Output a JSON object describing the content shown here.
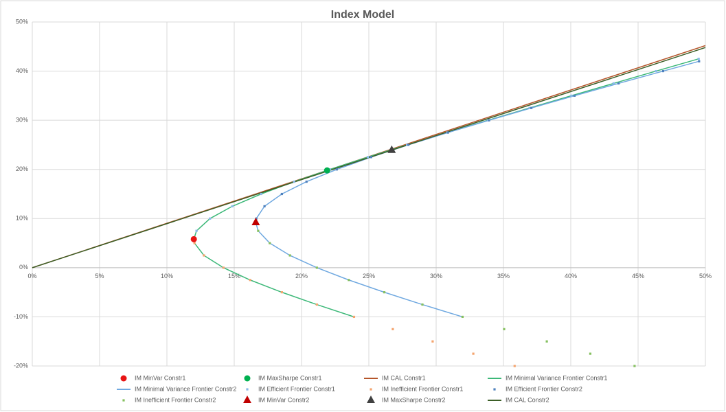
{
  "chart_data": {
    "type": "scatter",
    "title": "Index Model",
    "xlim": [
      0,
      50
    ],
    "ylim": [
      -20,
      50
    ],
    "xticks": [
      {
        "value": 0,
        "label": "0%"
      },
      {
        "value": 5,
        "label": "5%"
      },
      {
        "value": 10,
        "label": "10%"
      },
      {
        "value": 15,
        "label": "15%"
      },
      {
        "value": 20,
        "label": "20%"
      },
      {
        "value": 25,
        "label": "25%"
      },
      {
        "value": 30,
        "label": "30%"
      },
      {
        "value": 35,
        "label": "35%"
      },
      {
        "value": 40,
        "label": "40%"
      },
      {
        "value": 45,
        "label": "45%"
      },
      {
        "value": 50,
        "label": "50%"
      }
    ],
    "yticks": [
      {
        "value": -20,
        "label": "-20%"
      },
      {
        "value": -10,
        "label": "-10%"
      },
      {
        "value": 0,
        "label": "0%"
      },
      {
        "value": 10,
        "label": "10%"
      },
      {
        "value": 20,
        "label": "20%"
      },
      {
        "value": 30,
        "label": "30%"
      },
      {
        "value": 40,
        "label": "40%"
      },
      {
        "value": 50,
        "label": "50%"
      }
    ],
    "grid": true,
    "series": [
      {
        "name": "IM MinVar Constr1",
        "color": "#e81414",
        "marker": "circle",
        "x": [
          12.0
        ],
        "values": [
          5.8
        ]
      },
      {
        "name": "IM MaxSharpe Constr1",
        "color": "#00b050",
        "marker": "circle",
        "x": [
          21.9
        ],
        "values": [
          19.8
        ]
      },
      {
        "name": "IM CAL Constr1",
        "color": "#b5562b",
        "marker": "line",
        "x": [
          0,
          50
        ],
        "values": [
          0,
          45.2
        ]
      },
      {
        "name": "IM Minimal Variance Frontier Constr1",
        "color": "#3cb878",
        "marker": "line",
        "x": [
          23.9,
          21.14,
          18.54,
          16.18,
          14.2,
          12.75,
          12.05,
          12.0,
          12.2,
          13.2,
          14.86,
          17.0,
          19.45,
          22.12,
          24.93,
          27.84,
          30.83,
          33.86,
          36.94,
          40.05,
          43.18,
          46.33,
          49.5
        ],
        "values": [
          -10,
          -7.5,
          -5,
          -2.5,
          0,
          2.5,
          5,
          5.8,
          7.5,
          10,
          12.5,
          15,
          17.5,
          20,
          22.5,
          25,
          27.5,
          30,
          32.5,
          35,
          37.5,
          40,
          42.5
        ]
      },
      {
        "name": "IM Minimal Variance Frontier Constr2",
        "color": "#6fa8e0",
        "marker": "line",
        "x": [
          31.96,
          28.98,
          26.15,
          23.51,
          21.14,
          19.14,
          17.64,
          16.78,
          16.6,
          16.64,
          17.25,
          18.54,
          20.37,
          22.62,
          25.17,
          27.94,
          30.88,
          33.93,
          37.07,
          40.28,
          43.55,
          46.86,
          49.53
        ],
        "values": [
          -10,
          -7.5,
          -5,
          -2.5,
          0,
          2.5,
          5,
          7.5,
          9.2,
          10,
          12.5,
          15,
          17.5,
          20,
          22.5,
          25,
          27.5,
          30,
          32.5,
          35,
          37.5,
          40,
          42
        ]
      },
      {
        "name": "IM Efficient Frontier Constr1",
        "color": "#8ab8ea",
        "marker": "square",
        "x": [
          12.0,
          12.2,
          13.2,
          14.86,
          17.0,
          19.45,
          22.12,
          24.93,
          27.84,
          30.83,
          33.86,
          36.94,
          40.05,
          43.18,
          46.33,
          49.5
        ],
        "values": [
          5.8,
          7.5,
          10,
          12.5,
          15,
          17.5,
          20,
          22.5,
          25,
          27.5,
          30,
          32.5,
          35,
          37.5,
          40,
          42.5
        ]
      },
      {
        "name": "IM Inefficient Frontier Constr1",
        "color": "#f4a46e",
        "marker": "square",
        "x": [
          12.0,
          12.05,
          12.75,
          14.2,
          16.18,
          18.54,
          21.14,
          23.9,
          26.78,
          29.74,
          32.76,
          35.83
        ],
        "values": [
          5.8,
          5,
          2.5,
          0,
          -2.5,
          -5,
          -7.5,
          -10,
          -12.5,
          -15,
          -17.5,
          -20
        ]
      },
      {
        "name": "IM Efficient Frontier Constr2",
        "color": "#4f81bd",
        "marker": "square",
        "x": [
          16.6,
          16.64,
          17.25,
          18.54,
          20.37,
          22.62,
          25.17,
          27.94,
          30.88,
          33.93,
          37.07,
          40.28,
          43.55,
          46.86,
          49.53
        ],
        "values": [
          9.2,
          10,
          12.5,
          15,
          17.5,
          20,
          22.5,
          25,
          27.5,
          30,
          32.5,
          35,
          37.5,
          40,
          42
        ]
      },
      {
        "name": "IM Inefficient Frontier Constr2",
        "color": "#86c060",
        "marker": "square",
        "x": [
          16.6,
          16.78,
          17.64,
          19.14,
          21.14,
          23.51,
          26.15,
          28.98,
          31.96,
          35.05,
          38.22,
          41.45,
          44.74
        ],
        "values": [
          9.2,
          7.5,
          5,
          2.5,
          0,
          -2.5,
          -5,
          -7.5,
          -10,
          -12.5,
          -15,
          -17.5,
          -20
        ]
      },
      {
        "name": "IM MinVar Constr2",
        "color": "#c00000",
        "marker": "triangle",
        "x": [
          16.6
        ],
        "values": [
          9.2
        ]
      },
      {
        "name": "IM MaxSharpe Constr2",
        "color": "#404040",
        "marker": "triangle",
        "x": [
          26.7
        ],
        "values": [
          23.9
        ]
      },
      {
        "name": "IM CAL Constr2",
        "color": "#3b5e26",
        "marker": "line",
        "x": [
          0,
          50
        ],
        "values": [
          0,
          44.8
        ]
      }
    ]
  }
}
